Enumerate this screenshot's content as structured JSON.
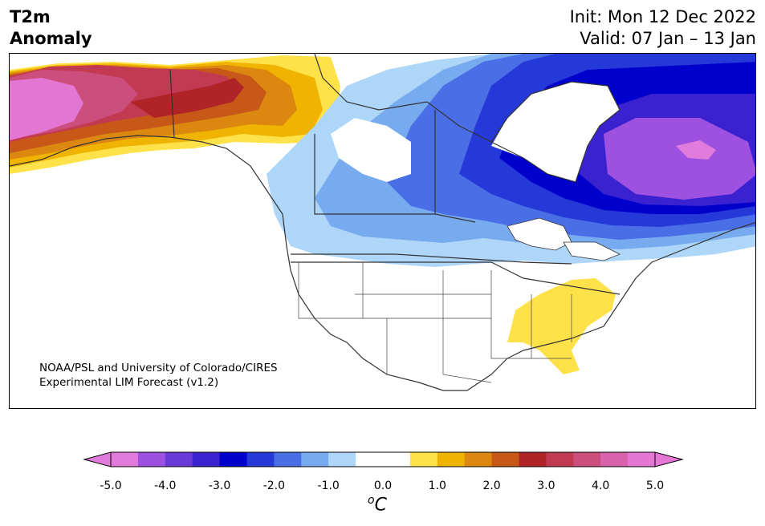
{
  "title": {
    "line1": "T2m",
    "line2": "Anomaly"
  },
  "info": {
    "init": "Init: Mon 12 Dec 2022",
    "valid": "Valid: 07 Jan – 13 Jan"
  },
  "credit": {
    "line1": "NOAA/PSL and University of Colorado/CIRES",
    "line2": "Experimental LIM Forecast (v1.2)"
  },
  "colorbar": {
    "unit_base": "C",
    "unit_sup": "o",
    "min": -5.0,
    "max": 5.0,
    "ticks": [
      "-5.0",
      "-4.0",
      "-3.0",
      "-2.0",
      "-1.0",
      "0.0",
      "1.0",
      "2.0",
      "3.0",
      "4.0",
      "5.0"
    ],
    "colors": [
      "#e27cdc",
      "#9e50e0",
      "#6a3ad8",
      "#3a22d0",
      "#0000cc",
      "#2538d8",
      "#4a6ee6",
      "#78aaf0",
      "#aed6f8",
      "#ffffff",
      "#ffffff",
      "#ffe24a",
      "#f0b400",
      "#dc8810",
      "#c85818",
      "#b02428",
      "#c23a52",
      "#cc4e7c",
      "#d862ac",
      "#e476d4"
    ],
    "under_color": "#e27cdc",
    "over_color": "#e476d4"
  }
}
